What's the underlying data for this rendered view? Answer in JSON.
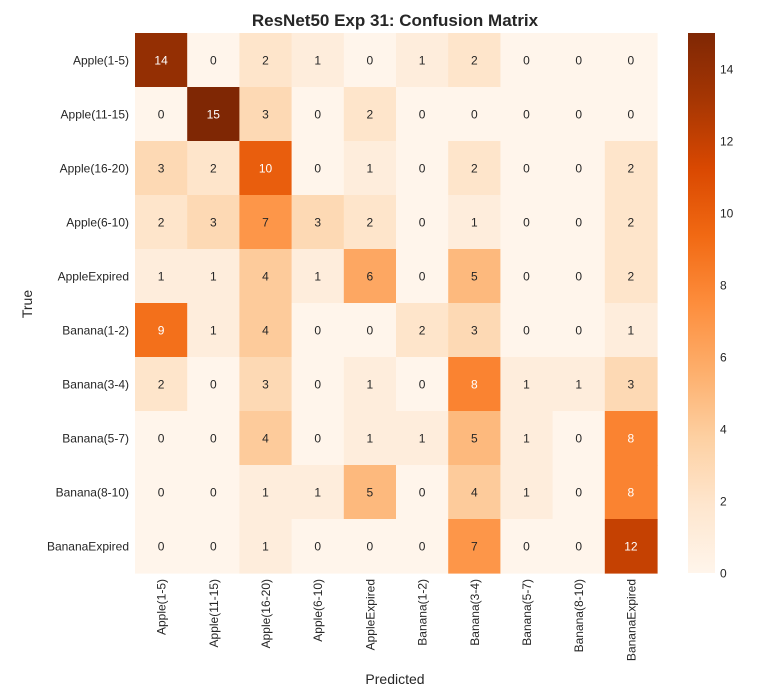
{
  "chart_data": {
    "type": "heatmap",
    "title": "ResNet50 Exp 31: Confusion Matrix",
    "xlabel": "Predicted",
    "ylabel": "True",
    "row_labels": [
      "Apple(1-5)",
      "Apple(11-15)",
      "Apple(16-20)",
      "Apple(6-10)",
      "AppleExpired",
      "Banana(1-2)",
      "Banana(3-4)",
      "Banana(5-7)",
      "Banana(8-10)",
      "BananaExpired"
    ],
    "col_labels": [
      "Apple(1-5)",
      "Apple(11-15)",
      "Apple(16-20)",
      "Apple(6-10)",
      "AppleExpired",
      "Banana(1-2)",
      "Banana(3-4)",
      "Banana(5-7)",
      "Banana(8-10)",
      "BananaExpired"
    ],
    "values": [
      [
        14,
        0,
        2,
        1,
        0,
        1,
        2,
        0,
        0,
        0
      ],
      [
        0,
        15,
        3,
        0,
        2,
        0,
        0,
        0,
        0,
        0
      ],
      [
        3,
        2,
        10,
        0,
        1,
        0,
        2,
        0,
        0,
        2
      ],
      [
        2,
        3,
        7,
        3,
        2,
        0,
        1,
        0,
        0,
        2
      ],
      [
        1,
        1,
        4,
        1,
        6,
        0,
        5,
        0,
        0,
        2
      ],
      [
        9,
        1,
        4,
        0,
        0,
        2,
        3,
        0,
        0,
        1
      ],
      [
        2,
        0,
        3,
        0,
        1,
        0,
        8,
        1,
        1,
        3
      ],
      [
        0,
        0,
        4,
        0,
        1,
        1,
        5,
        1,
        0,
        8
      ],
      [
        0,
        0,
        1,
        1,
        5,
        0,
        4,
        1,
        0,
        8
      ],
      [
        0,
        0,
        1,
        0,
        0,
        0,
        7,
        0,
        0,
        12
      ]
    ],
    "colorbar": {
      "min": 0,
      "max": 15,
      "ticks": [
        0,
        2,
        4,
        6,
        8,
        10,
        12,
        14
      ]
    },
    "colormap": "Oranges",
    "colors": {
      "low": "#fff5eb",
      "high": "#7f2704"
    },
    "grid": false
  }
}
